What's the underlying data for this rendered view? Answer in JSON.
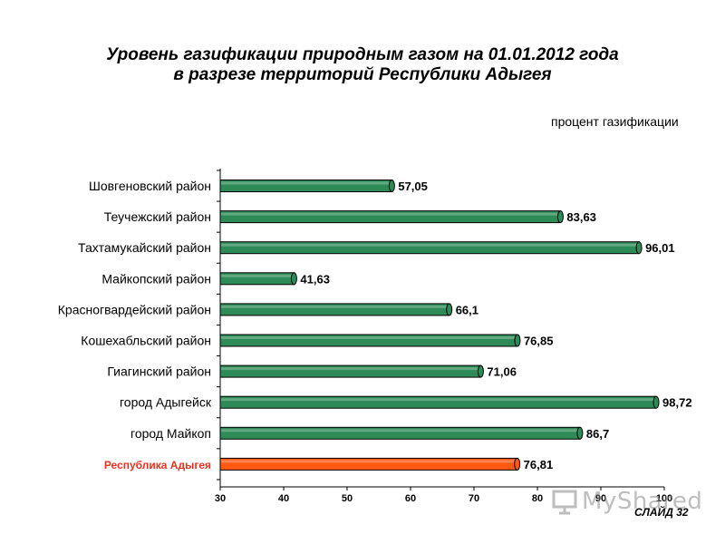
{
  "header": {
    "title_line1": "Уровень газификации  природным газом на 01.01.2012 года",
    "title_line2": "в разрезе территорий Республики Адыгея"
  },
  "unit_label": "процент газификации",
  "footer": {
    "slide_label": "СЛАЙД  32",
    "watermark": "MyShared"
  },
  "colors": {
    "bar": "#2e8b57",
    "highlight_bar": "#ff5a14",
    "highlight_label": "#e8321e",
    "bar_edge": "#000000"
  },
  "chart_data": {
    "type": "bar",
    "orientation": "horizontal",
    "categories": [
      "Шовгеновский район",
      "Теучежский район",
      "Тахтамукайский район",
      "Майкопский район",
      "Красногвардейский район",
      "Кошехабльский район",
      "Гиагинский район",
      "город Адыгейск",
      "город  Майкоп",
      "Республика Адыгея"
    ],
    "values": [
      57.05,
      83.63,
      96.01,
      41.63,
      66.1,
      76.85,
      71.06,
      98.72,
      86.7,
      76.81
    ],
    "value_labels": [
      "57,05",
      "83,63",
      "96,01",
      "41,63",
      "66,1",
      "76,85",
      "71,06",
      "98,72",
      "86,7",
      "76,81"
    ],
    "highlight_index": 9,
    "xlim": [
      30,
      100
    ],
    "xticks": [
      30,
      40,
      50,
      60,
      70,
      80,
      90,
      100
    ],
    "xtick_labels": [
      "30",
      "40",
      "50",
      "60",
      "70",
      "80",
      "90",
      "100"
    ],
    "grid": false,
    "legend": "none"
  }
}
